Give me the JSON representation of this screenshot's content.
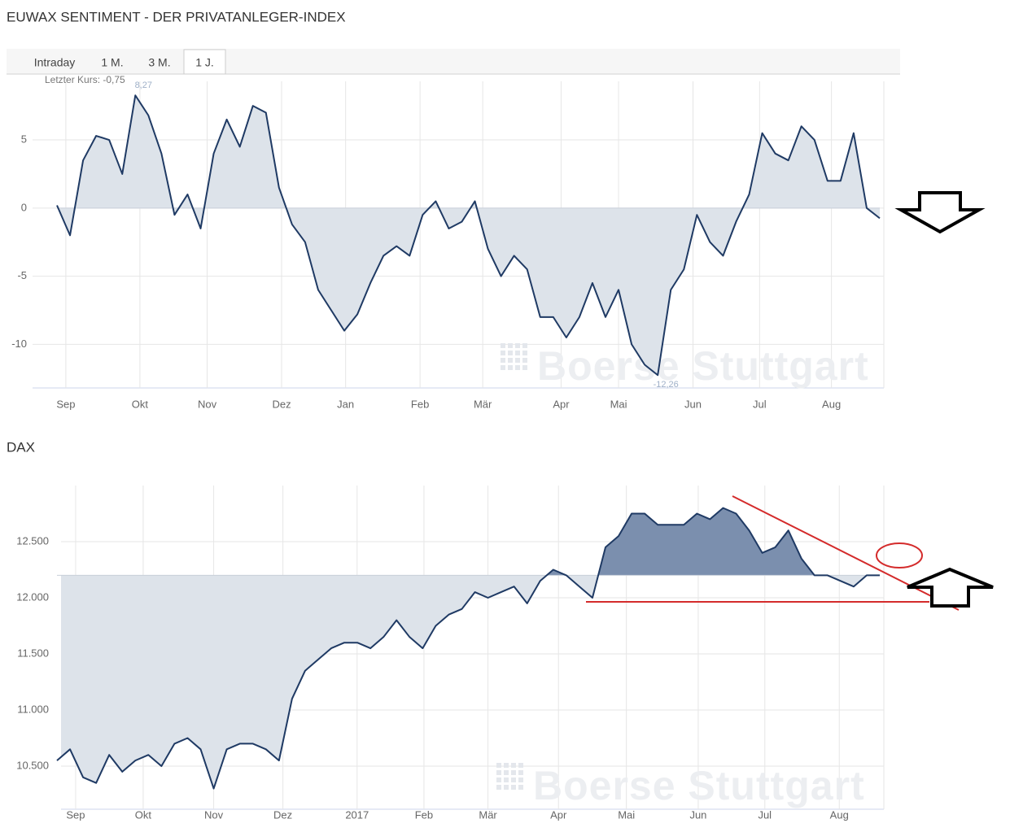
{
  "tabs": [
    "Intraday",
    "1 M.",
    "3 M.",
    "1 J."
  ],
  "active_tab": 3,
  "chart_data": [
    {
      "type": "area",
      "title": "EUWAX SENTIMENT - DER PRIVATANLEGER-INDEX",
      "last_price_label": "Letzter Kurs: -0,75",
      "watermark": "Boerse Stuttgart",
      "color": "#1f3a64",
      "fill_above": "#dde3ea",
      "fill_below": "#dde3ea",
      "baseline": 0,
      "values": [
        0.2,
        -2,
        3.5,
        5.3,
        5,
        2.5,
        8.27,
        6.8,
        4,
        -0.5,
        1,
        -1.5,
        4,
        6.5,
        4.5,
        7.5,
        7,
        1.5,
        -1.2,
        -2.5,
        -6,
        -7.5,
        -9,
        -7.8,
        -5.5,
        -3.5,
        -2.8,
        -3.5,
        -0.5,
        0.5,
        -1.5,
        -1,
        0.5,
        -3,
        -5,
        -3.5,
        -4.5,
        -8,
        -8,
        -9.5,
        -8,
        -5.5,
        -8,
        -6,
        -10,
        -11.5,
        -12.26,
        -6,
        -4.5,
        -0.5,
        -2.5,
        -3.5,
        -1,
        1,
        5.5,
        4,
        3.5,
        6,
        5,
        2,
        2,
        5.5,
        0,
        -0.75
      ],
      "value_labels": [
        null,
        null,
        null,
        null,
        null,
        null,
        "8,27",
        null,
        null,
        null,
        null,
        null,
        null,
        null,
        null,
        null,
        null,
        null,
        null,
        null,
        null,
        null,
        null,
        null,
        null,
        null,
        null,
        null,
        null,
        null,
        null,
        null,
        null,
        null,
        null,
        null,
        null,
        null,
        null,
        null,
        null,
        null,
        null,
        null,
        null,
        null,
        "-12,26",
        null,
        null,
        null,
        null,
        null,
        null,
        null,
        null,
        null,
        null,
        null,
        null,
        null,
        null,
        null,
        null,
        null
      ],
      "xlim": [
        0,
        63
      ],
      "xticks": [
        {
          "value": 0.68,
          "label": "Sep"
        },
        {
          "value": 6.35,
          "label": "Okt"
        },
        {
          "value": 11.5,
          "label": "Nov"
        },
        {
          "value": 17.2,
          "label": "Dez"
        },
        {
          "value": 22.1,
          "label": "Jan"
        },
        {
          "value": 27.8,
          "label": "Feb"
        },
        {
          "value": 32.6,
          "label": "Mär"
        },
        {
          "value": 38.6,
          "label": "Apr"
        },
        {
          "value": 43.0,
          "label": "Mai"
        },
        {
          "value": 48.7,
          "label": "Jun"
        },
        {
          "value": 53.8,
          "label": "Jul"
        },
        {
          "value": 59.3,
          "label": "Aug"
        }
      ],
      "ylim": [
        -13.2,
        9.3
      ],
      "yticks": [
        -10,
        -5,
        0,
        5
      ],
      "grid": true
    },
    {
      "type": "area",
      "title": "DAX",
      "watermark": "Boerse Stuttgart",
      "color": "#1f3a64",
      "fill_above": "#7b8fae",
      "fill_below": "#dde3ea",
      "baseline": 12200,
      "values": [
        10550,
        10650,
        10400,
        10350,
        10600,
        10450,
        10550,
        10600,
        10500,
        10700,
        10750,
        10650,
        10300,
        10650,
        10700,
        10700,
        10650,
        10550,
        11100,
        11350,
        11450,
        11550,
        11600,
        11600,
        11550,
        11650,
        11800,
        11650,
        11550,
        11750,
        11850,
        11900,
        12050,
        12000,
        12050,
        12100,
        11950,
        12150,
        12250,
        12200,
        12100,
        12000,
        12450,
        12550,
        12750,
        12750,
        12650,
        12650,
        12650,
        12750,
        12700,
        12800,
        12750,
        12600,
        12400,
        12450,
        12600,
        12350,
        12200,
        12200,
        12150,
        12100,
        12200,
        12200
      ],
      "xlim": [
        0,
        63
      ],
      "xticks": [
        {
          "value": 1.43,
          "label": "Sep"
        },
        {
          "value": 6.6,
          "label": "Okt"
        },
        {
          "value": 12.0,
          "label": "Nov"
        },
        {
          "value": 17.3,
          "label": "Dez"
        },
        {
          "value": 22.98,
          "label": "2017"
        },
        {
          "value": 28.1,
          "label": "Feb"
        },
        {
          "value": 33.0,
          "label": "Mär"
        },
        {
          "value": 38.4,
          "label": "Apr"
        },
        {
          "value": 43.6,
          "label": "Mai"
        },
        {
          "value": 49.1,
          "label": "Jun"
        },
        {
          "value": 54.2,
          "label": "Jul"
        },
        {
          "value": 59.9,
          "label": "Aug"
        }
      ],
      "ylim": [
        10116,
        13000
      ],
      "yticks": [
        {
          "value": 10500,
          "label": "10.500"
        },
        {
          "value": 11000,
          "label": "11.000"
        },
        {
          "value": 11500,
          "label": "11.500"
        },
        {
          "value": 12000,
          "label": "12.000"
        },
        {
          "value": 12500,
          "label": "12.500"
        }
      ],
      "grid": true
    }
  ]
}
